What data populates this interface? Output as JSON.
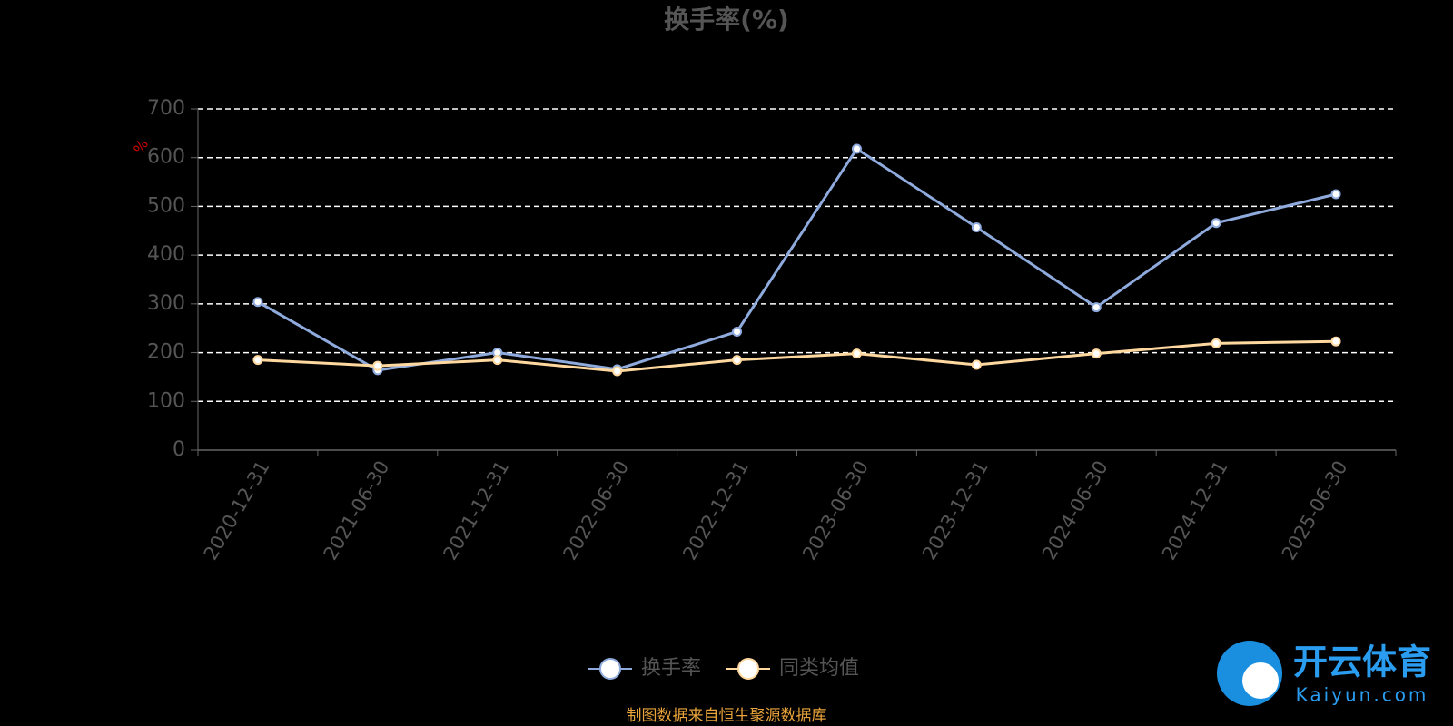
{
  "chart_data": {
    "type": "line",
    "title": "换手率(%)",
    "y_label": "%",
    "categories": [
      "2020-12-31",
      "2021-06-30",
      "2021-12-31",
      "2022-06-30",
      "2022-12-31",
      "2023-06-30",
      "2023-12-31",
      "2024-06-30",
      "2024-12-31",
      "2025-06-30"
    ],
    "series": [
      {
        "name": "换手率",
        "color": "#8faadc",
        "values": [
          304,
          164,
          200,
          166,
          243,
          618,
          457,
          293,
          466,
          525
        ]
      },
      {
        "name": "同类均值",
        "color": "#ffd8a0",
        "values": [
          185,
          173,
          185,
          162,
          185,
          198,
          175,
          198,
          219,
          223
        ]
      }
    ],
    "ylim": [
      0,
      700
    ],
    "yticks": [
      0,
      100,
      200,
      300,
      400,
      500,
      600,
      700
    ],
    "grid": true
  },
  "footer": "制图数据来自恒生聚源数据库",
  "watermark": {
    "brand": "开云体育",
    "site": "Kaiyun.com"
  }
}
